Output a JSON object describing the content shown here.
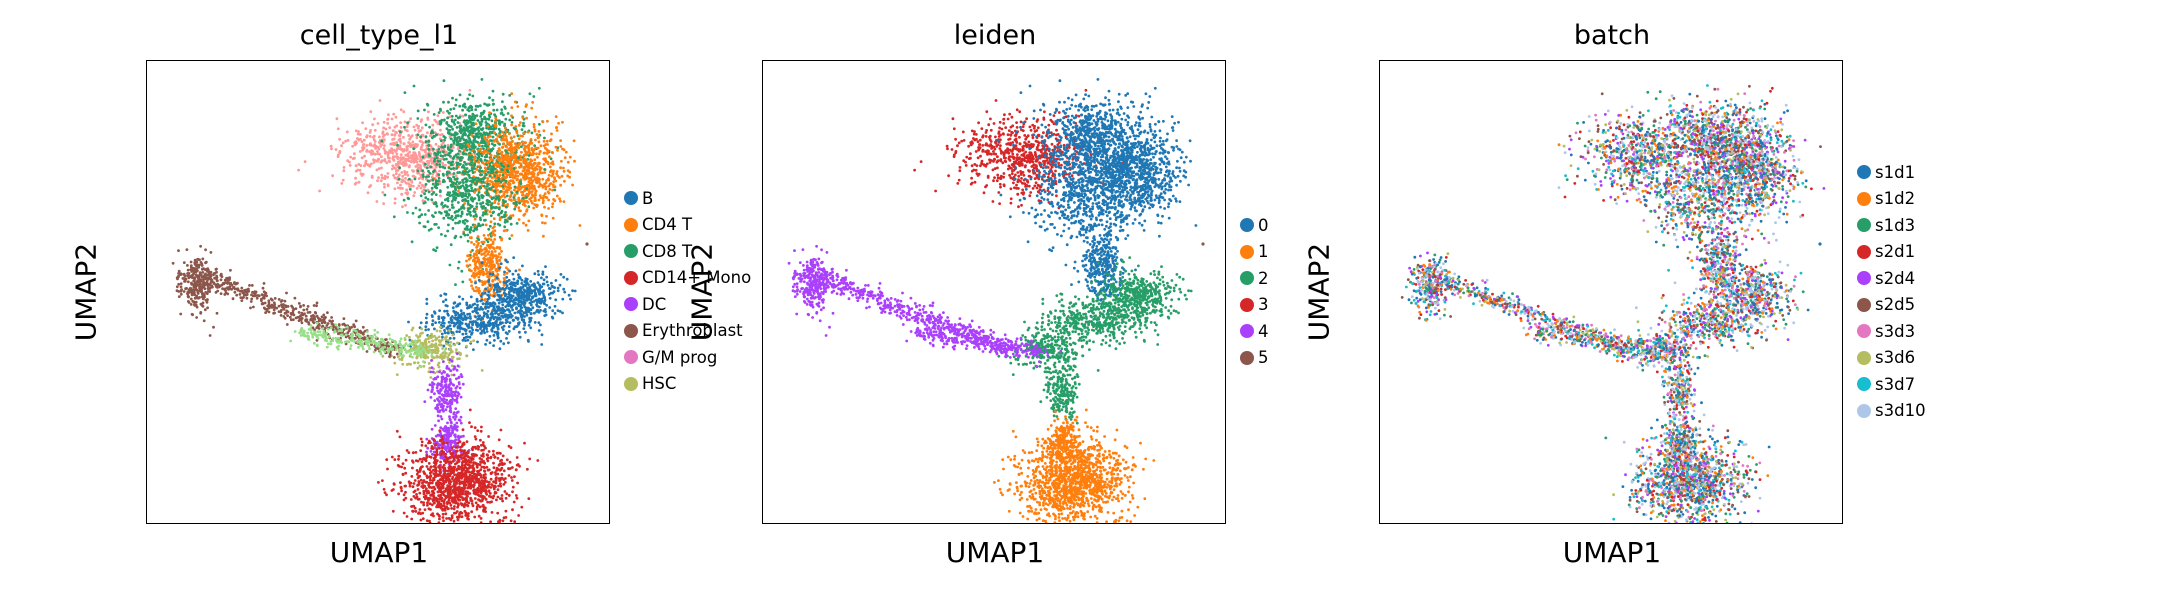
{
  "chart_data": [
    {
      "type": "scatter",
      "title": "cell_type_l1",
      "xlabel": "UMAP1",
      "ylabel": "UMAP2",
      "grid": false,
      "legend_position": "right",
      "legend": [
        {
          "label": "B",
          "color": "#1f77b4"
        },
        {
          "label": "CD4 T",
          "color": "#ff7f0e"
        },
        {
          "label": "CD8 T",
          "color": "#279e68"
        },
        {
          "label": "CD14+ Mono",
          "color": "#d62728"
        },
        {
          "label": "DC",
          "color": "#aa40fc"
        },
        {
          "label": "Erythroblast",
          "color": "#8c564b"
        },
        {
          "label": "G/M prog",
          "color": "#e377c2"
        },
        {
          "label": "HSC",
          "color": "#b5bd61"
        }
      ],
      "extra_group_colors": [
        "#ff9896",
        "#98df8a"
      ]
    },
    {
      "type": "scatter",
      "title": "leiden",
      "xlabel": "UMAP1",
      "ylabel": "UMAP2",
      "grid": false,
      "legend_position": "right",
      "legend": [
        {
          "label": "0",
          "color": "#1f77b4"
        },
        {
          "label": "1",
          "color": "#ff7f0e"
        },
        {
          "label": "2",
          "color": "#279e68"
        },
        {
          "label": "3",
          "color": "#d62728"
        },
        {
          "label": "4",
          "color": "#aa40fc"
        },
        {
          "label": "5",
          "color": "#8c564b"
        }
      ]
    },
    {
      "type": "scatter",
      "title": "batch",
      "xlabel": "UMAP1",
      "ylabel": "UMAP2",
      "grid": false,
      "legend_position": "right",
      "legend": [
        {
          "label": "s1d1",
          "color": "#1f77b4"
        },
        {
          "label": "s1d2",
          "color": "#ff7f0e"
        },
        {
          "label": "s1d3",
          "color": "#279e68"
        },
        {
          "label": "s2d1",
          "color": "#d62728"
        },
        {
          "label": "s2d4",
          "color": "#aa40fc"
        },
        {
          "label": "s2d5",
          "color": "#8c564b"
        },
        {
          "label": "s3d3",
          "color": "#e377c2"
        },
        {
          "label": "s3d6",
          "color": "#b5bd61"
        },
        {
          "label": "s3d7",
          "color": "#17becf"
        },
        {
          "label": "s3d10",
          "color": "#aec7e8"
        }
      ]
    }
  ]
}
